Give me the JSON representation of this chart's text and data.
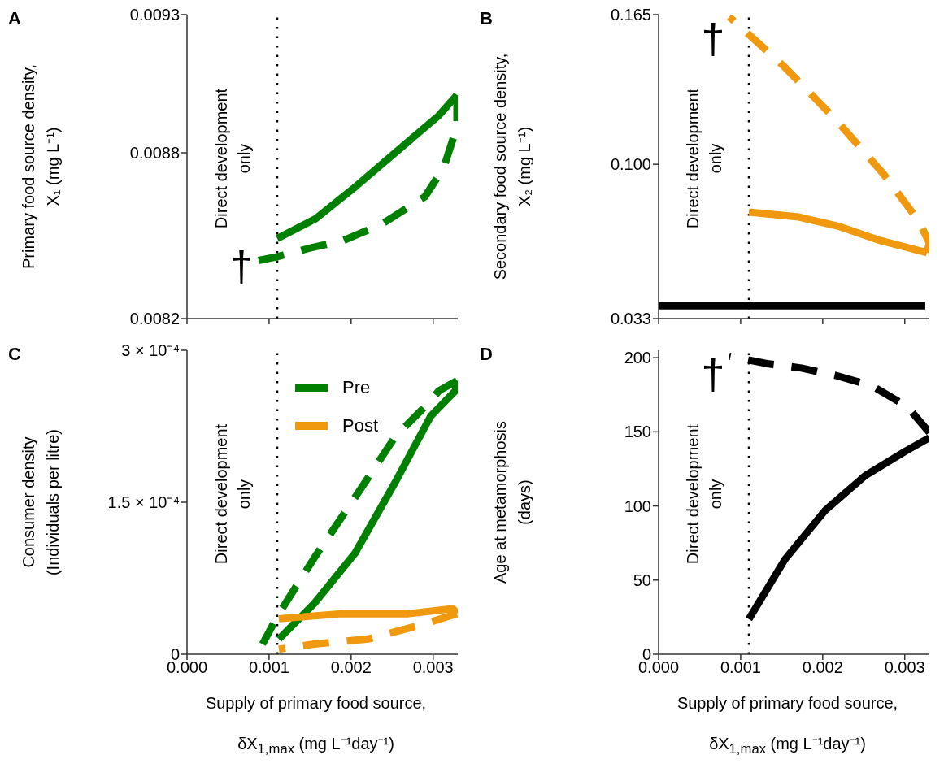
{
  "chart_data": [
    {
      "type": "line",
      "ylabel": "Primary food source density,\nX₁ (mg L⁻¹)",
      "tick_labels": "y",
      "xlim": [
        0,
        0.0033
      ],
      "xticks": [
        0,
        0.001,
        0.002,
        0.003
      ],
      "ylim": [
        0.0082,
        0.0093
      ],
      "yticks": [
        0.0082,
        0.0088,
        0.0093
      ],
      "series": [
        {
          "color": "#008000",
          "line_style": "solid",
          "x": [
            0.0011,
            0.00157,
            0.00206,
            0.00256,
            0.00307,
            0.00329
          ],
          "values": [
            0.00849,
            0.008562,
            0.008679,
            0.008806,
            0.008935,
            0.009009
          ]
        },
        {
          "color": "#008000",
          "line_style": "dashed",
          "x": [
            0.00329,
            0.00329,
            0.00313,
            0.0029,
            0.00237,
            0.0019,
            0.00147,
            0.0011,
            0.00085
          ],
          "values": [
            0.009009,
            0.008894,
            0.008747,
            0.008641,
            0.008541,
            0.008482,
            0.008453,
            0.008424,
            0.008409
          ]
        }
      ],
      "ref_lines": [
        {
          "axis": "x",
          "value": 0.0011,
          "label": "Direct development\nonly",
          "line_style": "dotted"
        }
      ],
      "annotations": [
        "A",
        "†"
      ]
    },
    {
      "type": "line",
      "ylabel": "Secondary food source density,\nX₂ (mg L⁻¹)",
      "tick_labels": "y",
      "xlim": [
        0,
        0.0033
      ],
      "xticks": [
        0,
        0.001,
        0.002,
        0.003
      ],
      "ylim": [
        0.033,
        0.165
      ],
      "yticks": [
        0.033,
        {
          "value": 0.1,
          "label": "0.100"
        },
        0.165
      ],
      "series": [
        {
          "color": "#f0990f",
          "line_style": "solid",
          "x": [
            0.0011,
            0.00171,
            0.00221,
            0.0027,
            0.00327
          ],
          "values": [
            0.0792,
            0.0771,
            0.0729,
            0.0669,
            0.0616
          ]
        },
        {
          "color": "#f0990f",
          "line_style": "dashed",
          "x": [
            0.00327,
            0.0033,
            0.00317,
            0.00274,
            0.00215,
            0.00152,
            0.00092,
            0.00086
          ],
          "values": [
            0.0616,
            0.0658,
            0.0754,
            0.0958,
            0.1198,
            0.1428,
            0.1622,
            0.164
          ]
        },
        {
          "color": "#000000",
          "line_style": "solid",
          "x": [
            0,
            0.00325
          ],
          "values": [
            0.0386,
            0.0386
          ]
        }
      ],
      "ref_lines": [
        {
          "axis": "x",
          "value": 0.0011,
          "label": "Direct development\nonly",
          "line_style": "dotted"
        }
      ],
      "annotations": [
        "B",
        "†"
      ]
    },
    {
      "type": "line",
      "xlabel": "Supply of primary food source,\nδX$_{1,max}$ (mg L⁻¹day⁻¹)",
      "ylabel": "Consumer density\n(Individuals per litre)",
      "legend": "top right",
      "xlim": [
        0,
        0.0033
      ],
      "xticks": [
        {
          "value": 0,
          "label": "0.000"
        },
        {
          "value": 0.001,
          "label": "0.001"
        },
        {
          "value": 0.002,
          "label": "0.002"
        },
        {
          "value": 0.003,
          "label": "0.003"
        }
      ],
      "ylim": [
        0,
        0.0003
      ],
      "yticks": [
        0,
        {
          "value": 0.00015,
          "label": "1.5 × 10⁻⁴"
        },
        {
          "value": 0.0003,
          "label": "3 × 10⁻⁴"
        }
      ],
      "series": [
        {
          "name": "Pre",
          "color": "#008000",
          "line_style": "solid",
          "x": [
            0.00112,
            0.00155,
            0.00205,
            0.00254,
            0.00297,
            0.00327,
            0.00329
          ],
          "values": [
            1.5e-05,
            5e-05,
            0.0001,
            0.00017,
            0.000235,
            0.00026,
            0.00027
          ]
        },
        {
          "color": "#008000",
          "line_style": "dashed",
          "x": [
            0.00329,
            0.00307,
            0.00297,
            0.00254,
            0.00205,
            0.00155,
            0.00112,
            0.00092
          ],
          "values": [
            0.00027,
            0.00026,
            0.00025,
            0.000215,
            0.000155,
            9.5e-05,
            4e-05,
            1e-05
          ]
        },
        {
          "name": "Post",
          "color": "#f0990f",
          "line_style": "solid",
          "x": [
            0.00112,
            0.00188,
            0.0027,
            0.00324,
            0.00329
          ],
          "values": [
            3.5e-05,
            4e-05,
            4e-05,
            4.5e-05,
            4e-05
          ]
        },
        {
          "color": "#f0990f",
          "line_style": "dashed",
          "x": [
            0.00329,
            0.0029,
            0.00221,
            0.00155,
            0.00112
          ],
          "values": [
            4e-05,
            3e-05,
            1.5e-05,
            1e-05,
            5e-06
          ]
        }
      ],
      "ref_lines": [
        {
          "axis": "x",
          "value": 0.0011,
          "label": "Direct development\nonly",
          "line_style": "dotted"
        }
      ],
      "annotations": [
        "C"
      ]
    },
    {
      "type": "line",
      "xlabel": "Supply of primary food source,\nδX$_{1,max}$ (mg L⁻¹day⁻¹)",
      "ylabel": "Age at metamorphosis\n(days)",
      "xlim": [
        0,
        0.0033
      ],
      "xticks": [
        {
          "value": 0,
          "label": "0.000"
        },
        {
          "value": 0.001,
          "label": "0.001"
        },
        {
          "value": 0.002,
          "label": "0.002"
        },
        {
          "value": 0.003,
          "label": "0.003"
        }
      ],
      "ylim": [
        0,
        205
      ],
      "yticks": [
        0,
        50,
        100,
        150,
        200
      ],
      "series": [
        {
          "color": "#000000",
          "line_style": "solid",
          "x": [
            0.0011,
            0.00154,
            0.00203,
            0.00252,
            0.00301,
            0.0033
          ],
          "values": [
            23.6,
            64,
            97,
            120.5,
            137,
            146
          ]
        },
        {
          "color": "#000000",
          "line_style": "dashed",
          "x": [
            0.0033,
            0.00303,
            0.0026,
            0.00216,
            0.00174,
            0.00132,
            0.00086
          ],
          "values": [
            149.6,
            167,
            181,
            188,
            193,
            196,
            201
          ]
        }
      ],
      "ref_lines": [
        {
          "axis": "x",
          "value": 0.0011,
          "label": "Direct development\nonly",
          "line_style": "dotted"
        }
      ],
      "annotations": [
        "D",
        "†"
      ]
    }
  ]
}
